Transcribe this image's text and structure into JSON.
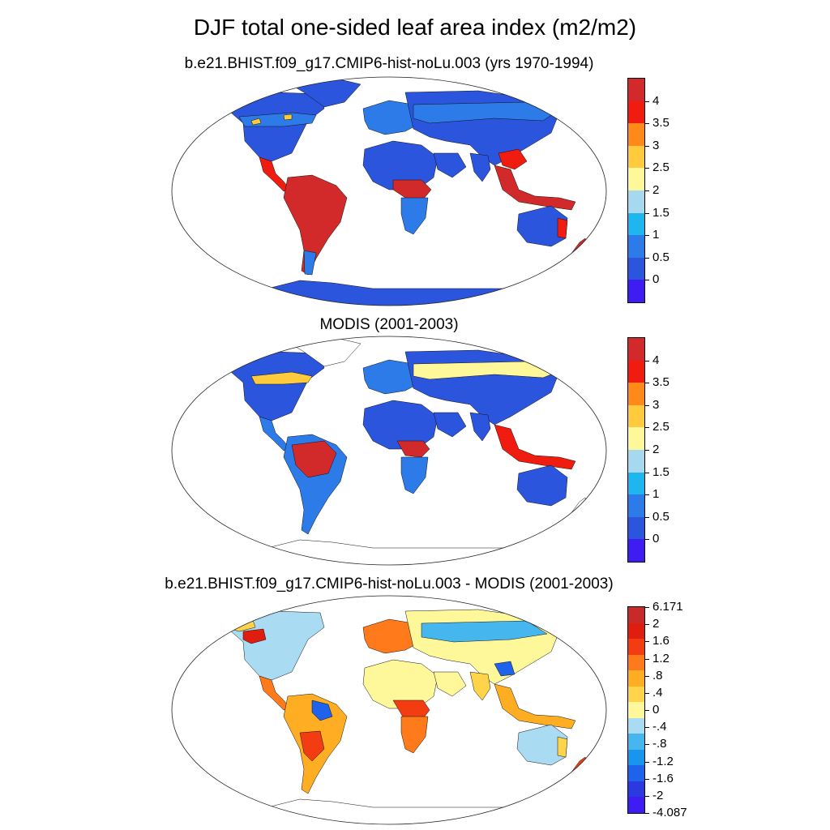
{
  "main_title": "DJF total one-sided leaf area index (m2/m2)",
  "panels": [
    {
      "title": "b.e21.BHIST.f09_g17.CMIP6-hist-noLu.003 (yrs 1970-1994)",
      "colorbar": {
        "colors": [
          "#3f1cf2",
          "#2c55de",
          "#2c7be8",
          "#1fb6f0",
          "#a6d8f0",
          "#fff89a",
          "#ffcb3c",
          "#ff8a1a",
          "#f01c10",
          "#d22a2a"
        ],
        "labels": [
          "0",
          "0.5",
          "1",
          "1.5",
          "2",
          "2.5",
          "3",
          "3.5",
          "4"
        ]
      }
    },
    {
      "title": "MODIS (2001-2003)",
      "colorbar": {
        "colors": [
          "#3f1cf2",
          "#2c55de",
          "#2c7be8",
          "#1fb6f0",
          "#a6d8f0",
          "#fff89a",
          "#ffcb3c",
          "#ff8a1a",
          "#f01c10",
          "#d22a2a"
        ],
        "labels": [
          "0",
          "0.5",
          "1",
          "1.5",
          "2",
          "2.5",
          "3",
          "3.5",
          "4"
        ]
      }
    },
    {
      "title": "b.e21.BHIST.f09_g17.CMIP6-hist-noLu.003 - MODIS (2001-2003)",
      "colorbar": {
        "colors": [
          "#3f1cf2",
          "#2a3ae0",
          "#1f62ec",
          "#1896ee",
          "#45b7ee",
          "#a9dbf2",
          "#fff89a",
          "#ffd34a",
          "#ffae24",
          "#ff7a1a",
          "#f43c12",
          "#e01e10",
          "#c82a2a"
        ],
        "labels": [
          "-4.087",
          "-2",
          "-1.6",
          "-1.2",
          "-.8",
          "-.4",
          "0",
          ".4",
          ".8",
          "1.2",
          "1.6",
          "2",
          "6.171"
        ]
      }
    }
  ]
}
